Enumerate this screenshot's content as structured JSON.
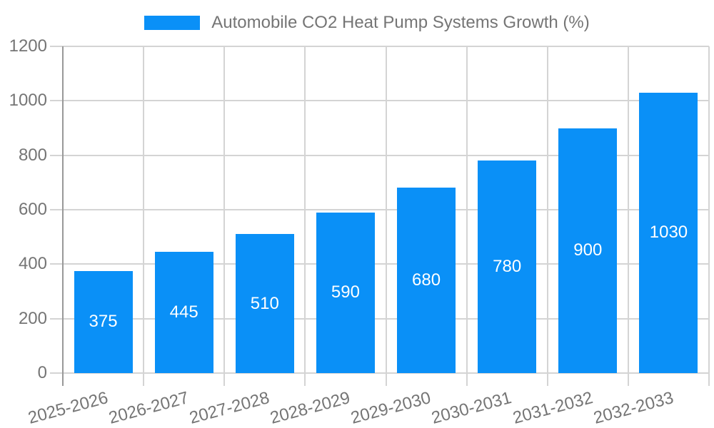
{
  "chart_data": {
    "type": "bar",
    "title": "Automobile CO2 Heat Pump Systems Growth (%)",
    "legend": [
      {
        "label": "Automobile CO2 Heat Pump Systems Growth (%)",
        "color": "#0a90f7"
      }
    ],
    "legend_position": "top",
    "categories": [
      "2025-2026",
      "2026-2027",
      "2027-2028",
      "2028-2029",
      "2029-2030",
      "2030-2031",
      "2031-2032",
      "2032-2033"
    ],
    "values": [
      375,
      445,
      510,
      590,
      680,
      780,
      900,
      1030
    ],
    "value_labels": [
      "375",
      "445",
      "510",
      "590",
      "680",
      "780",
      "900",
      "1030"
    ],
    "value_label_position": "inside-center",
    "xlabel": "",
    "ylabel": "",
    "ylim": [
      0,
      1200
    ],
    "yticks": [
      0,
      200,
      400,
      600,
      800,
      1000,
      1200
    ],
    "grid": "both",
    "x_label_rotation_deg": -15
  },
  "colors": {
    "bar": "#0a90f7",
    "grid": "#d4d4d4",
    "axis": "#999999",
    "tick_text": "#757575",
    "title_text": "#757575",
    "value_label_text": "#ffffff",
    "background": "#ffffff"
  }
}
